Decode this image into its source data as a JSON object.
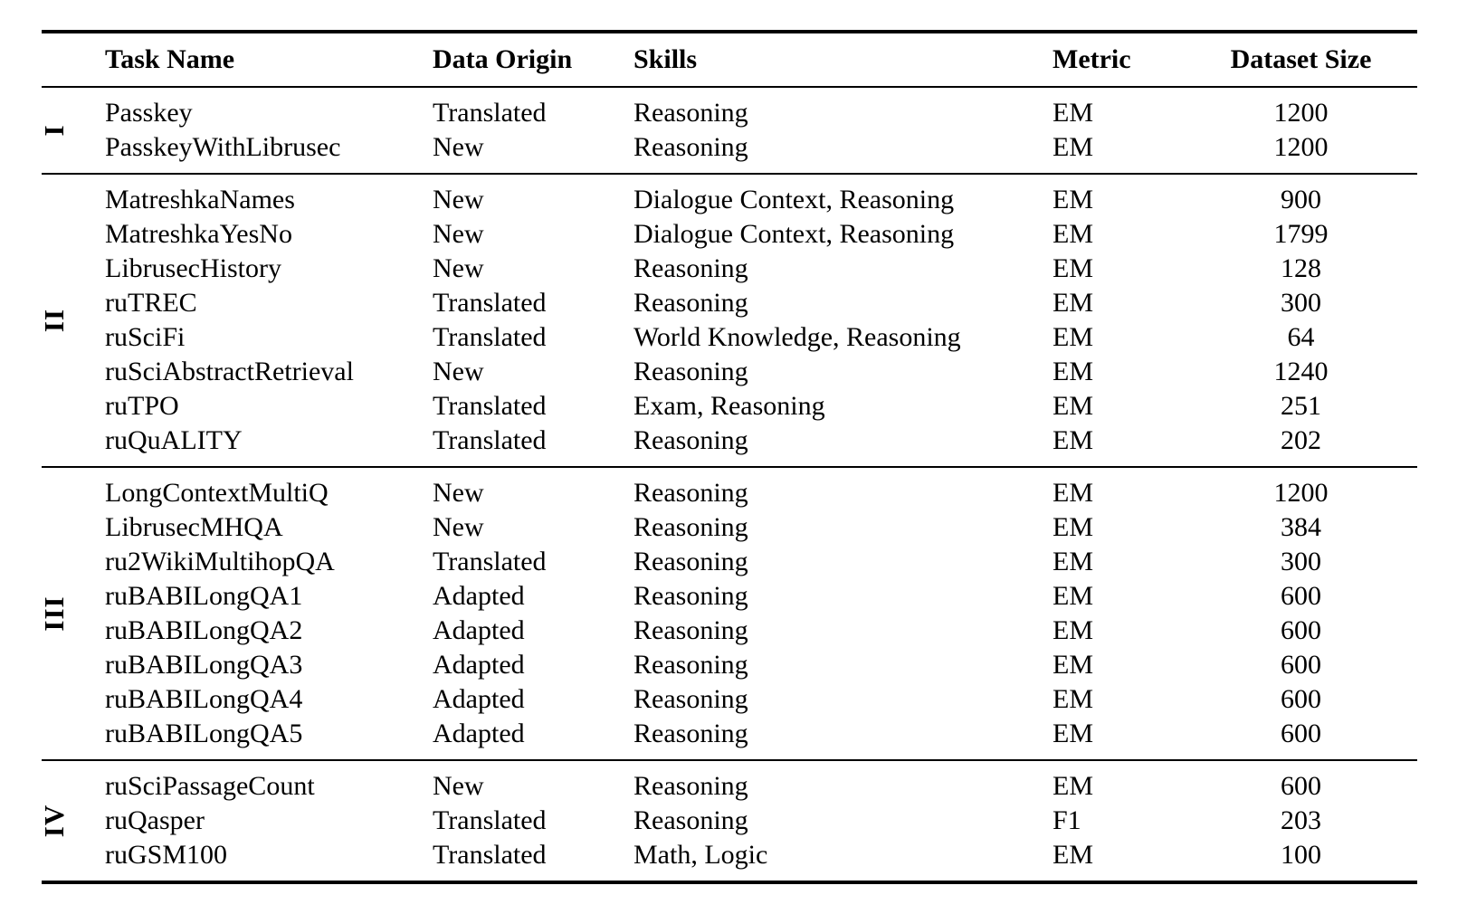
{
  "table": {
    "columns": {
      "task": "Task Name",
      "origin": "Data Origin",
      "skills": "Skills",
      "metric": "Metric",
      "size": "Dataset Size"
    },
    "groups": [
      {
        "label": "I",
        "rows": [
          {
            "task": "Passkey",
            "origin": "Translated",
            "skills": "Reasoning",
            "metric": "EM",
            "size": "1200"
          },
          {
            "task": "PasskeyWithLibrusec",
            "origin": "New",
            "skills": "Reasoning",
            "metric": "EM",
            "size": "1200"
          }
        ]
      },
      {
        "label": "II",
        "rows": [
          {
            "task": "MatreshkaNames",
            "origin": "New",
            "skills": "Dialogue Context, Reasoning",
            "metric": "EM",
            "size": "900"
          },
          {
            "task": "MatreshkaYesNo",
            "origin": "New",
            "skills": "Dialogue Context, Reasoning",
            "metric": "EM",
            "size": "1799"
          },
          {
            "task": "LibrusecHistory",
            "origin": "New",
            "skills": "Reasoning",
            "metric": "EM",
            "size": "128"
          },
          {
            "task": "ruTREC",
            "origin": "Translated",
            "skills": "Reasoning",
            "metric": "EM",
            "size": "300"
          },
          {
            "task": "ruSciFi",
            "origin": "Translated",
            "skills": "World Knowledge, Reasoning",
            "metric": "EM",
            "size": "64"
          },
          {
            "task": "ruSciAbstractRetrieval",
            "origin": "New",
            "skills": "Reasoning",
            "metric": "EM",
            "size": "1240"
          },
          {
            "task": "ruTPO",
            "origin": "Translated",
            "skills": "Exam, Reasoning",
            "metric": "EM",
            "size": "251"
          },
          {
            "task": "ruQuALITY",
            "origin": "Translated",
            "skills": "Reasoning",
            "metric": "EM",
            "size": "202"
          }
        ]
      },
      {
        "label": "III",
        "rows": [
          {
            "task": "LongContextMultiQ",
            "origin": "New",
            "skills": "Reasoning",
            "metric": "EM",
            "size": "1200"
          },
          {
            "task": "LibrusecMHQA",
            "origin": "New",
            "skills": "Reasoning",
            "metric": "EM",
            "size": "384"
          },
          {
            "task": "ru2WikiMultihopQA",
            "origin": "Translated",
            "skills": "Reasoning",
            "metric": "EM",
            "size": "300"
          },
          {
            "task": "ruBABILongQA1",
            "origin": "Adapted",
            "skills": "Reasoning",
            "metric": "EM",
            "size": "600"
          },
          {
            "task": "ruBABILongQA2",
            "origin": "Adapted",
            "skills": "Reasoning",
            "metric": "EM",
            "size": "600"
          },
          {
            "task": "ruBABILongQA3",
            "origin": "Adapted",
            "skills": "Reasoning",
            "metric": "EM",
            "size": "600"
          },
          {
            "task": "ruBABILongQA4",
            "origin": "Adapted",
            "skills": "Reasoning",
            "metric": "EM",
            "size": "600"
          },
          {
            "task": "ruBABILongQA5",
            "origin": "Adapted",
            "skills": "Reasoning",
            "metric": "EM",
            "size": "600"
          }
        ]
      },
      {
        "label": "IV",
        "rows": [
          {
            "task": "ruSciPassageCount",
            "origin": "New",
            "skills": "Reasoning",
            "metric": "EM",
            "size": "600"
          },
          {
            "task": "ruQasper",
            "origin": "Translated",
            "skills": "Reasoning",
            "metric": "F1",
            "size": "203"
          },
          {
            "task": "ruGSM100",
            "origin": "Translated",
            "skills": "Math, Logic",
            "metric": "EM",
            "size": "100"
          }
        ]
      }
    ]
  },
  "colors": {
    "text": "#000000",
    "rule": "#000000",
    "background": "#ffffff"
  }
}
